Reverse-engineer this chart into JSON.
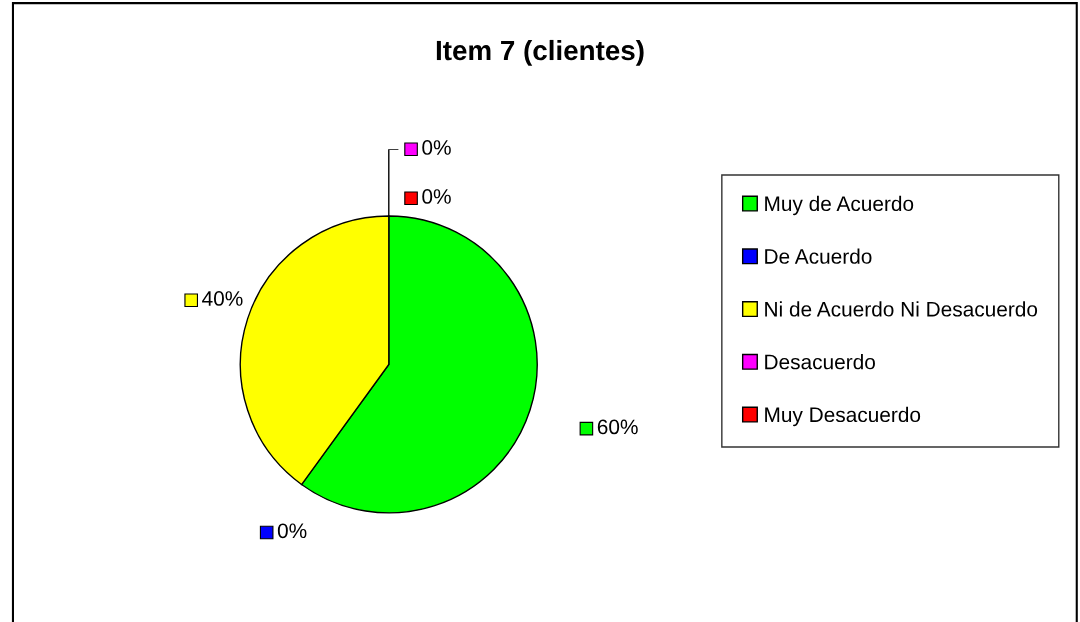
{
  "chart_data": {
    "type": "pie",
    "title": "Item 7 (clientes)",
    "categories": [
      "Muy de Acuerdo",
      "De Acuerdo",
      "Ni de Acuerdo Ni Desacuerdo",
      "Desacuerdo",
      "Muy Desacuerdo"
    ],
    "values": [
      60,
      0,
      40,
      0,
      0
    ],
    "colors": [
      "#00ff00",
      "#0000ff",
      "#ffff00",
      "#ff00ff",
      "#ff0000"
    ],
    "value_labels": [
      "60%",
      "0%",
      "40%",
      "0%",
      "0%"
    ],
    "legend": "right"
  }
}
